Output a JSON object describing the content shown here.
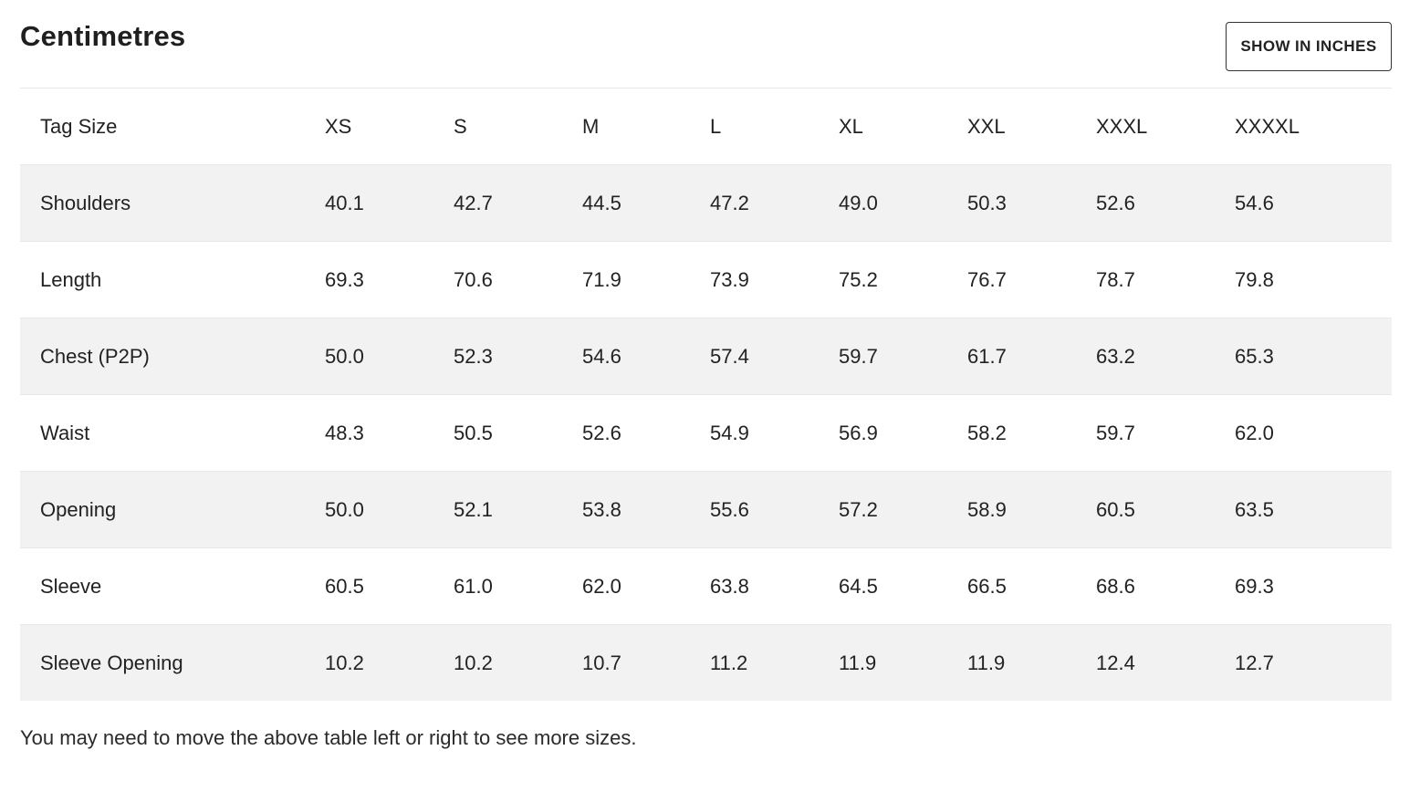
{
  "header": {
    "title": "Centimetres",
    "toggle_label": "SHOW IN INCHES"
  },
  "table": {
    "columns": [
      "Tag Size",
      "XS",
      "S",
      "M",
      "L",
      "XL",
      "XXL",
      "XXXL",
      "XXXXL"
    ],
    "rows": [
      {
        "label": "Shoulders",
        "values": [
          "40.1",
          "42.7",
          "44.5",
          "47.2",
          "49.0",
          "50.3",
          "52.6",
          "54.6"
        ]
      },
      {
        "label": "Length",
        "values": [
          "69.3",
          "70.6",
          "71.9",
          "73.9",
          "75.2",
          "76.7",
          "78.7",
          "79.8"
        ]
      },
      {
        "label": "Chest (P2P)",
        "values": [
          "50.0",
          "52.3",
          "54.6",
          "57.4",
          "59.7",
          "61.7",
          "63.2",
          "65.3"
        ]
      },
      {
        "label": "Waist",
        "values": [
          "48.3",
          "50.5",
          "52.6",
          "54.9",
          "56.9",
          "58.2",
          "59.7",
          "62.0"
        ]
      },
      {
        "label": "Opening",
        "values": [
          "50.0",
          "52.1",
          "53.8",
          "55.6",
          "57.2",
          "58.9",
          "60.5",
          "63.5"
        ]
      },
      {
        "label": "Sleeve",
        "values": [
          "60.5",
          "61.0",
          "62.0",
          "63.8",
          "64.5",
          "66.5",
          "68.6",
          "69.3"
        ]
      },
      {
        "label": "Sleeve Opening",
        "values": [
          "10.2",
          "10.2",
          "10.7",
          "11.2",
          "11.9",
          "11.9",
          "12.4",
          "12.7"
        ]
      }
    ]
  },
  "footer": {
    "note": "You may need to move the above table left or right to see more sizes."
  }
}
